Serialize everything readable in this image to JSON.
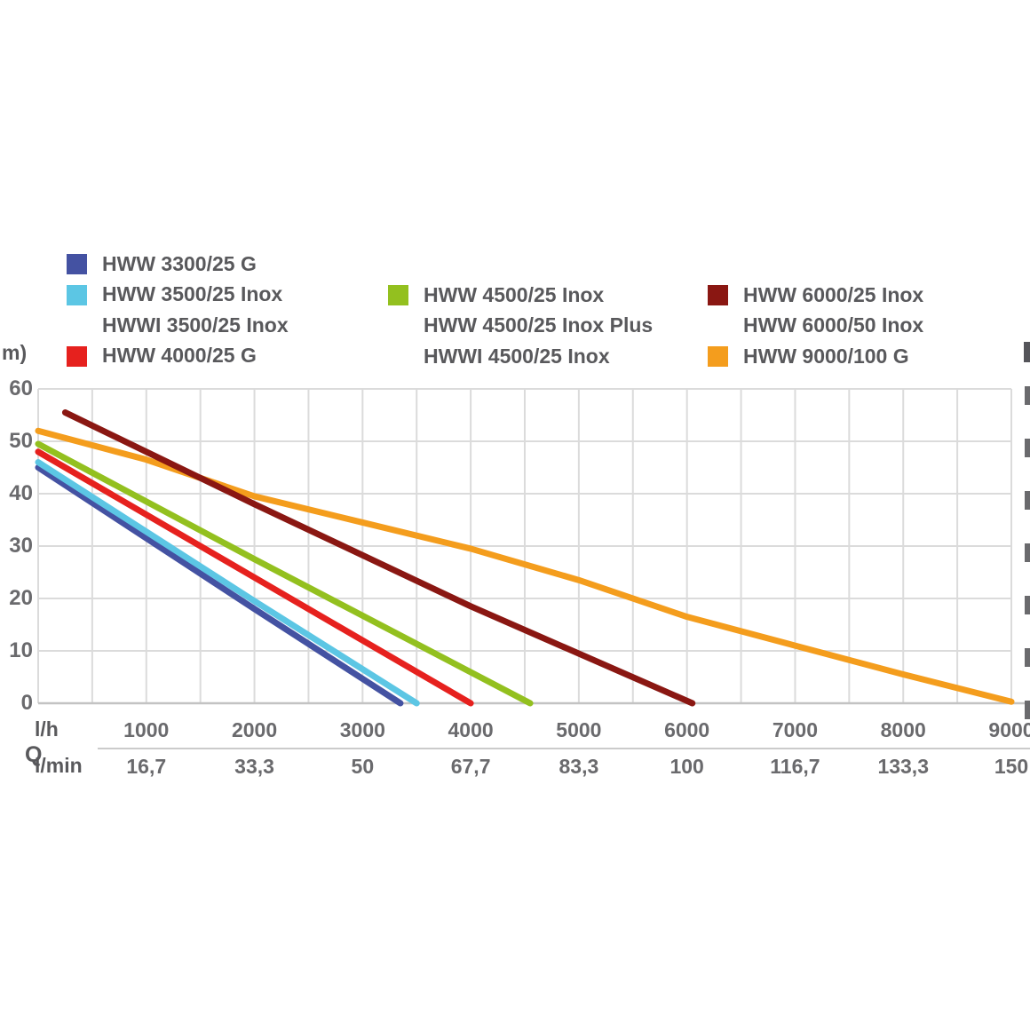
{
  "legend": {
    "columns": [
      {
        "entries": [
          {
            "color": "#4452a2",
            "lines": [
              "HWW 3300/25 G"
            ]
          },
          {
            "color": "#5cc6e4",
            "lines": [
              "HWW 3500/25 Inox",
              "HWWI 3500/25 Inox"
            ]
          },
          {
            "color": "#e6211e",
            "lines": [
              "HWW 4000/25 G"
            ]
          }
        ]
      },
      {
        "entries": [
          {
            "color": "#93c01f",
            "lines": [
              "HWW 4500/25 Inox",
              "HWW 4500/25 Inox Plus",
              "HWWI 4500/25 Inox"
            ]
          }
        ]
      },
      {
        "entries": [
          {
            "color": "#8a1712",
            "lines": [
              "HWW 6000/25 Inox",
              "HWW 6000/50 Inox"
            ]
          },
          {
            "color": "#f49d1d",
            "lines": [
              "HWW 9000/100 G"
            ]
          }
        ]
      }
    ]
  },
  "axes": {
    "y_unit_fragment": "m)",
    "q_label": "Q",
    "row1_label": "l/h",
    "row2_label": "l/min",
    "y_ticks": [
      "0",
      "10",
      "20",
      "30",
      "40",
      "50",
      "60"
    ],
    "x_ticks_lh": [
      "1000",
      "2000",
      "3000",
      "4000",
      "5000",
      "6000",
      "7000",
      "8000",
      "9000"
    ],
    "x_ticks_lmin": [
      "16,7",
      "33,3",
      "50",
      "67,7",
      "83,3",
      "100",
      "116,7",
      "133,3",
      "150"
    ]
  },
  "chart_data": {
    "type": "line",
    "title": "",
    "xlabel": "Q (l/h / l/min)",
    "ylabel": "m)",
    "x_axis_rows": {
      "lh": [
        1000,
        2000,
        3000,
        4000,
        5000,
        6000,
        7000,
        8000,
        9000
      ],
      "lmin": [
        "16,7",
        "33,3",
        "50",
        "67,7",
        "83,3",
        "100",
        "116,7",
        "133,3",
        "150"
      ]
    },
    "xlim_lh": [
      0,
      9000
    ],
    "ylim_m": [
      0,
      60
    ],
    "grid": {
      "x_step_lh": 500,
      "y_step_m": 10
    },
    "legend_position": "top",
    "series": [
      {
        "name": "HWW 3300/25 G",
        "color": "#4452a2",
        "points": [
          [
            0,
            45
          ],
          [
            2000,
            18
          ],
          [
            3350,
            0
          ]
        ]
      },
      {
        "name": "HWW 3500/25 Inox / HWWI 3500/25 Inox",
        "color": "#5cc6e4",
        "points": [
          [
            0,
            46
          ],
          [
            2000,
            19.5
          ],
          [
            3500,
            0
          ]
        ]
      },
      {
        "name": "HWW 4000/25 G",
        "color": "#e6211e",
        "points": [
          [
            0,
            48
          ],
          [
            2000,
            24
          ],
          [
            4000,
            0
          ]
        ]
      },
      {
        "name": "HWW 4500/25 Inox / HWW 4500/25 Inox Plus / HWWI 4500/25 Inox",
        "color": "#93c01f",
        "points": [
          [
            0,
            49.5
          ],
          [
            2000,
            27.5
          ],
          [
            4550,
            0
          ]
        ]
      },
      {
        "name": "HWW 9000/100 G",
        "color": "#f49d1d",
        "points": [
          [
            0,
            52
          ],
          [
            1000,
            46.5
          ],
          [
            2000,
            39.5
          ],
          [
            3000,
            34.5
          ],
          [
            4000,
            29.5
          ],
          [
            5000,
            23.5
          ],
          [
            6000,
            16.5
          ],
          [
            7000,
            11
          ],
          [
            8000,
            5.5
          ],
          [
            9000,
            0.3
          ]
        ]
      },
      {
        "name": "HWW 6000/25 Inox / HWW 6000/50 Inox",
        "color": "#8a1712",
        "points": [
          [
            250,
            55.5
          ],
          [
            2000,
            38
          ],
          [
            4000,
            18.5
          ],
          [
            6050,
            0
          ]
        ]
      }
    ]
  }
}
